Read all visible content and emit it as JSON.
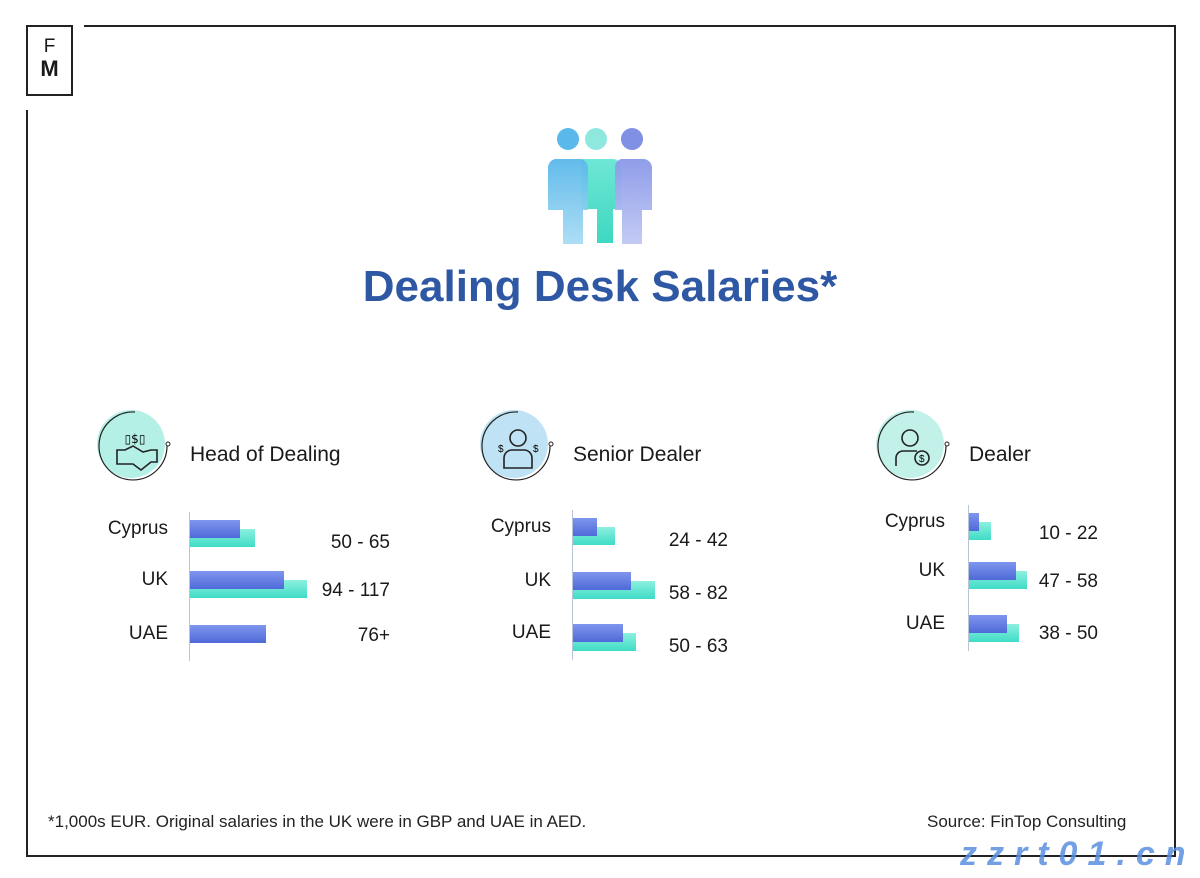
{
  "logo": {
    "line1": "F",
    "line2": "M"
  },
  "title": "Dealing Desk Salaries*",
  "chart_data": [
    {
      "type": "bar",
      "title": "Head of Dealing",
      "orientation": "horizontal",
      "categories": [
        "Cyprus",
        "UK",
        "UAE"
      ],
      "series": [
        {
          "values": [
            50,
            94,
            76
          ],
          "color": "#5b74e0"
        },
        {
          "values": [
            65,
            117,
            null
          ],
          "color": "#4fe0cc"
        }
      ],
      "data_labels": [
        "50 - 65",
        "94 - 117",
        "76+"
      ],
      "icon": "handshake-money-icon"
    },
    {
      "type": "bar",
      "title": "Senior Dealer",
      "orientation": "horizontal",
      "categories": [
        "Cyprus",
        "UK",
        "UAE"
      ],
      "series": [
        {
          "values": [
            24,
            58,
            50
          ],
          "color": "#5b74e0"
        },
        {
          "values": [
            42,
            82,
            63
          ],
          "color": "#4fe0cc"
        }
      ],
      "data_labels": [
        "24 - 42",
        "58 - 82",
        "50 - 63"
      ],
      "icon": "businessman-icon"
    },
    {
      "type": "bar",
      "title": "Dealer",
      "orientation": "horizontal",
      "categories": [
        "Cyprus",
        "UK",
        "UAE"
      ],
      "series": [
        {
          "values": [
            10,
            47,
            38
          ],
          "color": "#5b74e0"
        },
        {
          "values": [
            22,
            58,
            50
          ],
          "color": "#4fe0cc"
        }
      ],
      "data_labels": [
        "10 - 22",
        "47 - 58",
        "38 - 50"
      ],
      "icon": "dealer-coin-icon"
    }
  ],
  "footnote": "*1,000s EUR. Original salaries in the UK were in GBP and UAE in AED.",
  "source": "Source: FinTop Consulting",
  "watermark": "zzrt01.cn"
}
